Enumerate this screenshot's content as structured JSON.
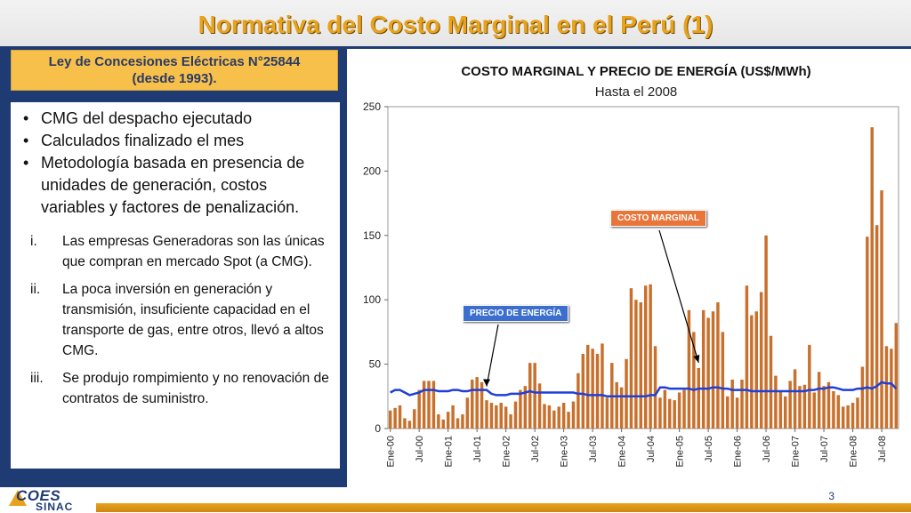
{
  "slide": {
    "title": "Normativa del Costo Marginal en el Perú (1)",
    "law_line1": "Ley de Concesiones Eléctricas N°25844",
    "law_line2": "(desde 1993).",
    "page_number": "3",
    "logo_top": "COES",
    "logo_bottom": "SINAC"
  },
  "bullets": [
    "CMG del despacho ejecutado",
    "Calculados finalizado el mes",
    "Metodología basada en presencia de unidades de generación, costos variables y factores de penalización."
  ],
  "bullet_glyph": "•",
  "reasons": [
    {
      "num": "i.",
      "text": "Las empresas Generadoras son las únicas que compran en mercado Spot (a CMG)."
    },
    {
      "num": "ii.",
      "text": "La poca inversión en generación y transmisión, insuficiente capacidad en el transporte de gas, entre otros,  llevó a altos CMG."
    },
    {
      "num": "iii.",
      "text": "Se produjo rompimiento y no renovación de contratos de suministro."
    }
  ],
  "colors": {
    "navy": "#1f3b73",
    "gold": "#e8a21c",
    "bar": "#c8702c",
    "line": "#1f3fd8",
    "callout_orange": "#e8763b",
    "callout_blue": "#3c6fcd"
  },
  "chart_data": {
    "type": "bar",
    "title": "COSTO MARGINAL  Y PRECIO DE ENERGÍA  (US$/MWh)",
    "subtitle": "Hasta el 2008",
    "ylim": [
      0,
      250
    ],
    "yticks": [
      0,
      50,
      100,
      150,
      200,
      250
    ],
    "grid": false,
    "x_tick_labels": [
      "Ene-00",
      "Jul-00",
      "Ene-01",
      "Jul-01",
      "Ene-02",
      "Jul-02",
      "Ene-03",
      "Jul-03",
      "Ene-04",
      "Jul-04",
      "Ene-05",
      "Jul-05",
      "Ene-06",
      "Jul-06",
      "Ene-07",
      "Jul-07",
      "Ene-08",
      "Jul-08"
    ],
    "annotations": [
      {
        "label": "COSTO MARGINAL",
        "series": "Costo Marginal"
      },
      {
        "label": "PRECIO DE ENERGÍA",
        "series": "Precio de Energía"
      }
    ],
    "series": [
      {
        "name": "Costo Marginal",
        "type": "bar",
        "values": [
          14,
          16,
          18,
          8,
          6,
          15,
          30,
          37,
          37,
          37,
          11,
          7,
          13,
          18,
          8,
          11,
          24,
          38,
          40,
          36,
          22,
          20,
          18,
          20,
          17,
          11,
          21,
          30,
          33,
          51,
          51,
          35,
          19,
          18,
          14,
          17,
          20,
          13,
          21,
          43,
          58,
          65,
          62,
          58,
          66,
          24,
          51,
          36,
          32,
          54,
          109,
          100,
          98,
          111,
          112,
          64,
          24,
          30,
          23,
          22,
          28,
          30,
          92,
          75,
          47,
          92,
          86,
          91,
          98,
          75,
          25,
          38,
          24,
          38,
          111,
          88,
          91,
          106,
          150,
          72,
          41,
          29,
          25,
          37,
          46,
          33,
          34,
          65,
          28,
          44,
          33,
          36,
          29,
          26,
          17,
          18,
          20,
          24,
          48,
          149,
          234,
          158,
          185,
          64,
          62,
          82
        ]
      },
      {
        "name": "Precio de Energía",
        "type": "line",
        "values": [
          28,
          30,
          30,
          28,
          26,
          27,
          28,
          30,
          30,
          30,
          29,
          29,
          29,
          30,
          30,
          29,
          29,
          30,
          30,
          30,
          30,
          27,
          26,
          26,
          26,
          27,
          27,
          27,
          28,
          29,
          28,
          28,
          28,
          28,
          28,
          28,
          28,
          28,
          28,
          27,
          27,
          26,
          26,
          26,
          26,
          25,
          25,
          25,
          25,
          25,
          25,
          25,
          25,
          25,
          26,
          26,
          32,
          32,
          31,
          31,
          31,
          31,
          31,
          30,
          31,
          31,
          31,
          32,
          32,
          31,
          31,
          30,
          30,
          30,
          30,
          29,
          29,
          29,
          29,
          29,
          29,
          29,
          29,
          29,
          29,
          29,
          29,
          30,
          30,
          31,
          31,
          32,
          32,
          31,
          30,
          30,
          30,
          31,
          31,
          32,
          31,
          33,
          36,
          35,
          35,
          31
        ]
      }
    ]
  }
}
